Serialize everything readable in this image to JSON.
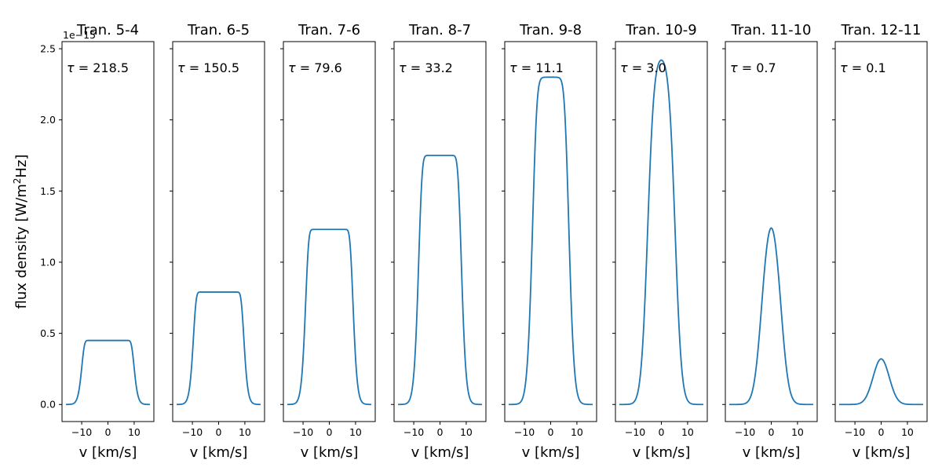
{
  "chart_data": {
    "type": "line",
    "line_color": "#1f77b4",
    "ylabel_prefix": "flux density [W/m",
    "ylabel_sup": "2",
    "ylabel_suffix": "Hz]",
    "xlabel": "v [km/s]",
    "y_offset_label": "1e−15",
    "y_scale": 1e-15,
    "xlim": [
      -17.5,
      17.5
    ],
    "ylim": [
      -0.12,
      2.55
    ],
    "x_ticks": [
      -10,
      0,
      10
    ],
    "x_tick_labels": [
      "−10",
      "0",
      "10"
    ],
    "y_ticks": [
      0.0,
      0.5,
      1.0,
      1.5,
      2.0,
      2.5
    ],
    "y_tick_labels": [
      "0.0",
      "0.5",
      "1.0",
      "1.5",
      "2.0",
      "2.5"
    ],
    "tau_prefix": "τ = ",
    "panels": [
      {
        "title": "Tran. 5-4",
        "tau": "218.5",
        "tau_value": 218.5,
        "peak": 0.45
      },
      {
        "title": "Tran. 6-5",
        "tau": "150.5",
        "tau_value": 150.5,
        "peak": 0.79
      },
      {
        "title": "Tran. 7-6",
        "tau": "79.6",
        "tau_value": 79.6,
        "peak": 1.23
      },
      {
        "title": "Tran. 8-7",
        "tau": "33.2",
        "tau_value": 33.2,
        "peak": 1.75
      },
      {
        "title": "Tran. 9-8",
        "tau": "11.1",
        "tau_value": 11.1,
        "peak": 2.3
      },
      {
        "title": "Tran. 10-9",
        "tau": "3.0",
        "tau_value": 3.0,
        "peak": 2.42
      },
      {
        "title": "Tran. 11-10",
        "tau": "0.7",
        "tau_value": 0.7,
        "peak": 1.24
      },
      {
        "title": "Tran. 12-11",
        "tau": "0.1",
        "tau_value": 0.1,
        "peak": 0.32
      }
    ]
  }
}
